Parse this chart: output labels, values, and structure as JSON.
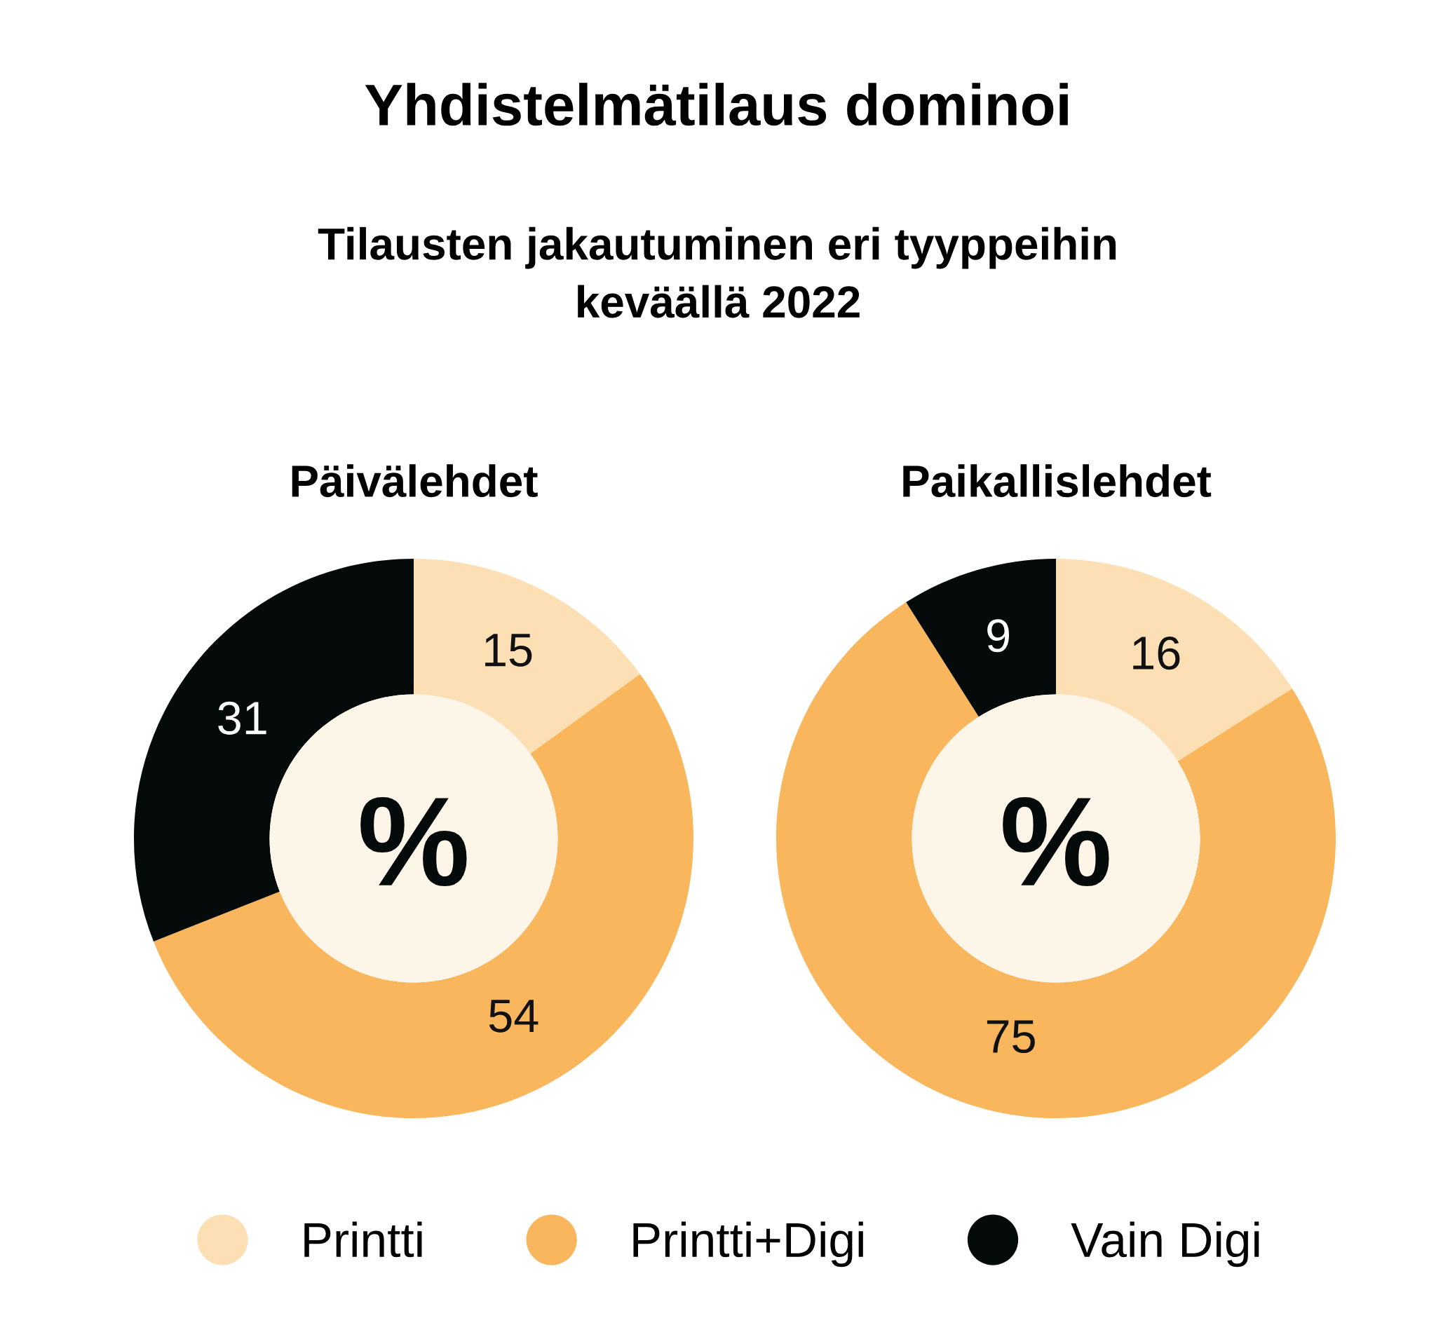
{
  "chart_data": [
    {
      "type": "other",
      "title": "Yhdistelmätilaus dominoi",
      "subtitle": "Tilausten jakautuminen eri tyyppeihin\nkeväällä 2022"
    },
    {
      "type": "donut",
      "title": "Päivälehdet",
      "categories": [
        "Printti",
        "Printti+Digi",
        "Vain Digi"
      ],
      "values": [
        15,
        54,
        31
      ],
      "colors": [
        "#fddfb5",
        "#f9b65c",
        "#050a0a"
      ],
      "data_labels": true,
      "annotations": [
        "%"
      ],
      "legend": "bottom"
    },
    {
      "type": "donut",
      "title": "Paikallislehdet",
      "categories": [
        null,
        null,
        null
      ],
      "values": [
        16,
        75,
        9
      ],
      "colors": [
        "#fddfb5",
        "#f9b65c",
        "#050a0a"
      ],
      "data_labels": true,
      "annotations": [
        "%"
      ]
    }
  ]
}
